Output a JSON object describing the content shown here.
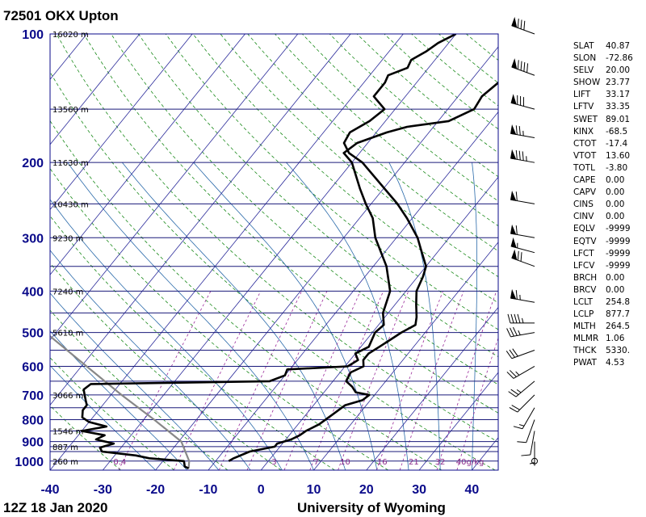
{
  "header": {
    "title": "72501 OKX Upton"
  },
  "footer": {
    "time": "12Z 18 Jan 2020",
    "source": "University of Wyoming"
  },
  "chart_data": {
    "type": "line",
    "xlabel": "",
    "ylabel": "",
    "xlim": [
      -40,
      45
    ],
    "ylim": [
      1050,
      100
    ],
    "yscale": "log",
    "x_ticks": [
      -40,
      -30,
      -20,
      -10,
      0,
      10,
      20,
      30,
      40
    ],
    "y_ticks": [
      100,
      200,
      300,
      400,
      500,
      600,
      700,
      800,
      900,
      1000
    ],
    "isobars": [
      100,
      150,
      200,
      250,
      300,
      350,
      400,
      450,
      500,
      550,
      600,
      650,
      700,
      750,
      800,
      850,
      900,
      925,
      950,
      1000,
      1050
    ],
    "height_labels": [
      {
        "p": 100,
        "label": "16020 m"
      },
      {
        "p": 150,
        "label": "13560 m"
      },
      {
        "p": 200,
        "label": "11630 m"
      },
      {
        "p": 250,
        "label": "10430 m"
      },
      {
        "p": 300,
        "label": "9230 m"
      },
      {
        "p": 400,
        "label": "7240 m"
      },
      {
        "p": 500,
        "label": "5610 m"
      },
      {
        "p": 700,
        "label": "3066 m"
      },
      {
        "p": 850,
        "label": "1546 m"
      },
      {
        "p": 925,
        "label": "887 m"
      },
      {
        "p": 1000,
        "label": "260 m"
      }
    ],
    "mixing_ratio_labels": [
      {
        "w": 0.4,
        "x": -28,
        "label": "0.4"
      },
      {
        "w": 3,
        "x": 2,
        "label": "3"
      },
      {
        "w": 7,
        "x": 10,
        "label": "7"
      },
      {
        "w": 10,
        "x": 15,
        "label": "10"
      },
      {
        "w": 16,
        "x": 22,
        "label": "16"
      },
      {
        "w": 21,
        "x": 28,
        "label": "21"
      },
      {
        "w": 32,
        "x": 33,
        "label": "32"
      },
      {
        "w": 40,
        "x": 37,
        "label": "40g/kg"
      }
    ],
    "series": [
      {
        "color": "#000000",
        "points": [
          [
            1000,
            -7.5
          ],
          [
            985,
            -7.0
          ],
          [
            950,
            -5.0
          ],
          [
            925,
            -1.0
          ],
          [
            910,
            -1.0
          ],
          [
            890,
            1.0
          ],
          [
            870,
            2.0
          ],
          [
            850,
            2.5
          ],
          [
            820,
            4.0
          ],
          [
            780,
            5.0
          ],
          [
            740,
            6.0
          ],
          [
            720,
            8.5
          ],
          [
            700,
            9.0
          ],
          [
            690,
            6.0
          ],
          [
            670,
            4.5
          ],
          [
            650,
            2.5
          ],
          [
            620,
            2.0
          ],
          [
            600,
            3.5
          ],
          [
            580,
            2.5
          ],
          [
            560,
            2.5
          ],
          [
            540,
            3.5
          ],
          [
            520,
            4.5
          ],
          [
            500,
            5.5
          ],
          [
            480,
            7.0
          ],
          [
            460,
            6.0
          ],
          [
            430,
            4.0
          ],
          [
            400,
            2.0
          ],
          [
            370,
            1.0
          ],
          [
            350,
            0.0
          ],
          [
            320,
            -3.5
          ],
          [
            300,
            -6.0
          ],
          [
            270,
            -11.0
          ],
          [
            250,
            -15.0
          ],
          [
            200,
            -28.0
          ],
          [
            190,
            -32.0
          ],
          [
            180,
            -34.5
          ],
          [
            170,
            -35.0
          ],
          [
            160,
            -33.0
          ],
          [
            150,
            -32.0
          ],
          [
            140,
            -36.0
          ],
          [
            130,
            -36.0
          ],
          [
            125,
            -36.5
          ],
          [
            120,
            -34.0
          ],
          [
            115,
            -34.5
          ],
          [
            110,
            -33.0
          ],
          [
            105,
            -32.0
          ],
          [
            100,
            -30.0
          ]
        ]
      },
      {
        "color": "#000000",
        "points": [
          [
            1040,
            -14.0
          ],
          [
            1030,
            -15.0
          ],
          [
            1000,
            -16.0
          ],
          [
            985,
            -23.0
          ],
          [
            970,
            -26.0
          ],
          [
            950,
            -33.0
          ],
          [
            930,
            -34.0
          ],
          [
            910,
            -32.0
          ],
          [
            890,
            -36.0
          ],
          [
            870,
            -35.0
          ],
          [
            850,
            -40.0
          ],
          [
            830,
            -36.0
          ],
          [
            810,
            -40.0
          ],
          [
            790,
            -42.0
          ],
          [
            760,
            -43.0
          ],
          [
            740,
            -43.0
          ],
          [
            720,
            -44.0
          ],
          [
            700,
            -45.0
          ],
          [
            680,
            -46.0
          ],
          [
            660,
            -45.5
          ],
          [
            650,
            -12.0
          ],
          [
            630,
            -10.0
          ],
          [
            610,
            -10.5
          ],
          [
            600,
            0.5
          ],
          [
            580,
            1.5
          ],
          [
            560,
            0.0
          ],
          [
            540,
            1.5
          ],
          [
            500,
            0.5
          ],
          [
            480,
            1.0
          ],
          [
            450,
            -1.0
          ],
          [
            400,
            -3.0
          ],
          [
            350,
            -7.5
          ],
          [
            300,
            -14.0
          ],
          [
            270,
            -17.5
          ],
          [
            250,
            -21.0
          ],
          [
            230,
            -24.5
          ],
          [
            200,
            -30.0
          ],
          [
            190,
            -33.0
          ],
          [
            180,
            -32.0
          ],
          [
            170,
            -28.0
          ],
          [
            165,
            -25.0
          ],
          [
            160,
            -18.0
          ],
          [
            150,
            -15.0
          ],
          [
            140,
            -15.5
          ],
          [
            130,
            -14.5
          ],
          [
            125,
            -14.0
          ],
          [
            120,
            -12.0
          ],
          [
            115,
            -9.0
          ],
          [
            110,
            -7.0
          ],
          [
            105,
            -2.0
          ],
          [
            100,
            3.0
          ]
        ]
      }
    ],
    "parcel_path": {
      "color": "#888888",
      "points": [
        [
          1040,
          -14.0
        ],
        [
          1000,
          -15.0
        ],
        [
          900,
          -19.5
        ],
        [
          800,
          -28.0
        ],
        [
          700,
          -38.0
        ],
        [
          600,
          -49.0
        ],
        [
          500,
          -62.0
        ],
        [
          400,
          -78.0
        ]
      ]
    },
    "wind_barbs": [
      {
        "p": 100,
        "dir": 290,
        "spd_kt": 80
      },
      {
        "p": 125,
        "dir": 290,
        "spd_kt": 90
      },
      {
        "p": 150,
        "dir": 285,
        "spd_kt": 80
      },
      {
        "p": 175,
        "dir": 280,
        "spd_kt": 75
      },
      {
        "p": 200,
        "dir": 280,
        "spd_kt": 85
      },
      {
        "p": 250,
        "dir": 280,
        "spd_kt": 60
      },
      {
        "p": 300,
        "dir": 280,
        "spd_kt": 60
      },
      {
        "p": 325,
        "dir": 285,
        "spd_kt": 55
      },
      {
        "p": 350,
        "dir": 290,
        "spd_kt": 70
      },
      {
        "p": 425,
        "dir": 280,
        "spd_kt": 65
      },
      {
        "p": 475,
        "dir": 270,
        "spd_kt": 45
      },
      {
        "p": 500,
        "dir": 260,
        "spd_kt": 35
      },
      {
        "p": 550,
        "dir": 250,
        "spd_kt": 30
      },
      {
        "p": 600,
        "dir": 240,
        "spd_kt": 25
      },
      {
        "p": 650,
        "dir": 230,
        "spd_kt": 25
      },
      {
        "p": 700,
        "dir": 225,
        "spd_kt": 20
      },
      {
        "p": 750,
        "dir": 210,
        "spd_kt": 15
      },
      {
        "p": 800,
        "dir": 200,
        "spd_kt": 10
      },
      {
        "p": 850,
        "dir": 190,
        "spd_kt": 10
      },
      {
        "p": 900,
        "dir": 180,
        "spd_kt": 5
      },
      {
        "p": 1000,
        "dir": 0,
        "spd_kt": 0
      }
    ]
  },
  "indices": [
    {
      "name": "SLAT",
      "value": "40.87"
    },
    {
      "name": "SLON",
      "value": "-72.86"
    },
    {
      "name": "SELV",
      "value": "20.00"
    },
    {
      "name": "SHOW",
      "value": "23.77"
    },
    {
      "name": "LIFT",
      "value": "33.17"
    },
    {
      "name": "LFTV",
      "value": "33.35"
    },
    {
      "name": "SWET",
      "value": "89.01"
    },
    {
      "name": "KINX",
      "value": "-68.5"
    },
    {
      "name": "CTOT",
      "value": "-17.4"
    },
    {
      "name": "VTOT",
      "value": "13.60"
    },
    {
      "name": "TOTL",
      "value": "-3.80"
    },
    {
      "name": "CAPE",
      "value": "0.00"
    },
    {
      "name": "CAPV",
      "value": "0.00"
    },
    {
      "name": "CINS",
      "value": "0.00"
    },
    {
      "name": "CINV",
      "value": "0.00"
    },
    {
      "name": "EQLV",
      "value": "-9999"
    },
    {
      "name": "EQTV",
      "value": "-9999"
    },
    {
      "name": "LFCT",
      "value": "-9999"
    },
    {
      "name": "LFCV",
      "value": "-9999"
    },
    {
      "name": "BRCH",
      "value": "0.00"
    },
    {
      "name": "BRCV",
      "value": "0.00"
    },
    {
      "name": "LCLT",
      "value": "254.8"
    },
    {
      "name": "LCLP",
      "value": "877.7"
    },
    {
      "name": "MLTH",
      "value": "264.5"
    },
    {
      "name": "MLMR",
      "value": "1.06"
    },
    {
      "name": "THCK",
      "value": "5330."
    },
    {
      "name": "PWAT",
      "value": "4.53"
    }
  ],
  "colors": {
    "isobar": "#1a1a7a",
    "isotherm": "#2a2a9a",
    "dry_adiabat": "#1a8a1a",
    "moist_adiabat": "#2a6aaa",
    "mixing_ratio": "#9a2a9a",
    "temperature": "#000000",
    "dewpoint": "#000000",
    "parcel": "#888888"
  }
}
